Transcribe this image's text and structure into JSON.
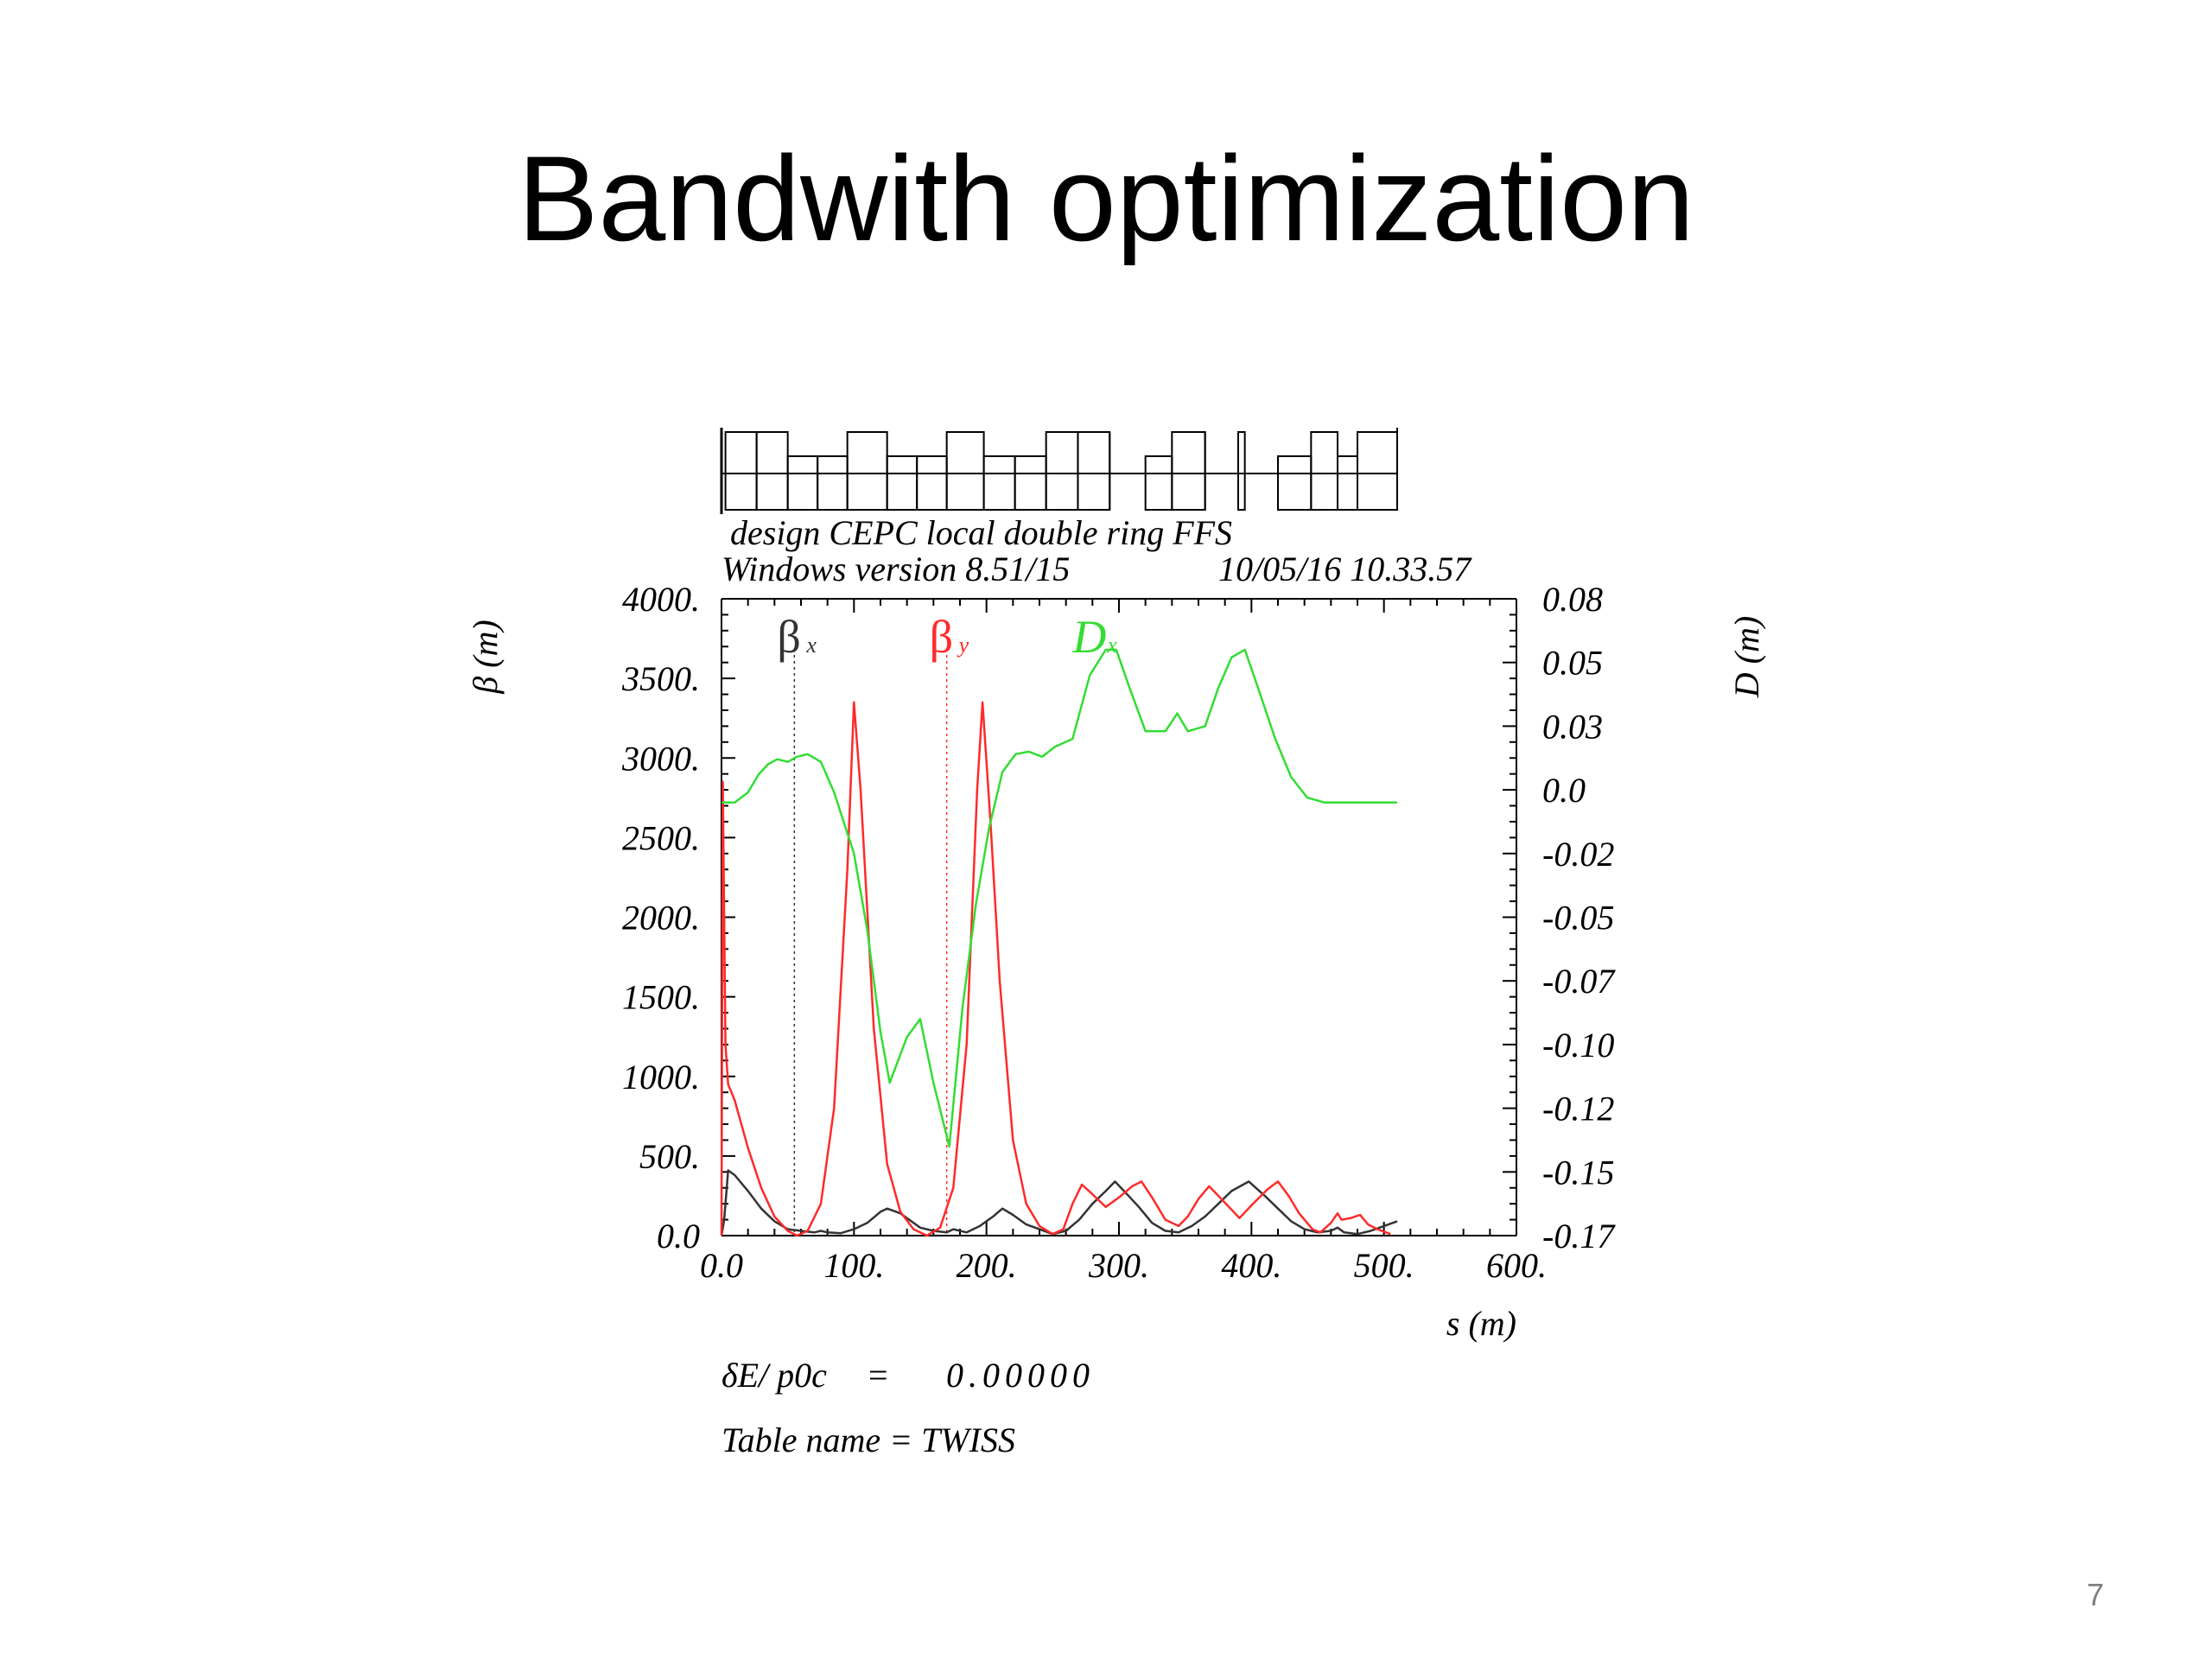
{
  "slide": {
    "title": "Bandwith optimization",
    "page_number": "7"
  },
  "plot_info": {
    "header_line1": "design CEPC local double ring FFS",
    "header_line2_left": "Windows version 8.51/15",
    "header_line2_right": "10/05/16  10.33.57",
    "footer_delta_label": "δE/ p0c",
    "footer_delta_equals": "=",
    "footer_delta_value": "0.00000",
    "footer_table": "Table name = TWISS"
  },
  "colors": {
    "beta_x": "#333333",
    "beta_y": "#ff2a2a",
    "dispersion": "#33dd33",
    "axes": "#000000"
  },
  "chart_data": {
    "type": "line",
    "xlabel": "s (m)",
    "ylabel_left": "β (m)",
    "ylabel_right": "D (m)",
    "xlim": [
      0,
      600
    ],
    "ylim_left": [
      0,
      4000
    ],
    "ylim_right": [
      -0.17,
      0.08
    ],
    "x_ticks": [
      "0.0",
      "100.",
      "200.",
      "300.",
      "400.",
      "500.",
      "600."
    ],
    "y_ticks_left": [
      "0.0",
      "500.",
      "1000.",
      "1500.",
      "2000.",
      "2500.",
      "3000.",
      "3500.",
      "4000."
    ],
    "y_ticks_right": [
      "-0.17",
      "-0.15",
      "-0.12",
      "-0.10",
      "-0.07",
      "-0.05",
      "-0.02",
      "0.0",
      "0.03",
      "0.05",
      "0.08"
    ],
    "legend": [
      {
        "main": "β",
        "sub": "x",
        "color_key": "beta_x"
      },
      {
        "main": "β",
        "sub": "y",
        "color_key": "beta_y"
      },
      {
        "main": "D",
        "sub": "x",
        "color_key": "dispersion"
      }
    ],
    "markers": [
      {
        "s": 55,
        "series": "beta_x"
      },
      {
        "s": 170,
        "series": "beta_y"
      }
    ],
    "lattice_s_end": 510,
    "lattice_elements": [
      {
        "s": 0,
        "type": "tick"
      },
      {
        "s": 3,
        "type": "box_up",
        "end": 50
      },
      {
        "s": 50,
        "type": "box_down",
        "end": 95
      },
      {
        "s": 95,
        "type": "box_up",
        "end": 125
      },
      {
        "s": 125,
        "type": "box_down",
        "end": 170
      },
      {
        "s": 170,
        "type": "box_up",
        "end": 198
      },
      {
        "s": 198,
        "type": "box_down",
        "end": 245
      },
      {
        "s": 245,
        "type": "box_up",
        "end": 293
      },
      {
        "s": 293,
        "type": "line"
      },
      {
        "s": 320,
        "type": "box_down",
        "end": 340
      },
      {
        "s": 340,
        "type": "box_up",
        "end": 365
      },
      {
        "s": 365,
        "type": "line"
      },
      {
        "s": 390,
        "type": "box_up",
        "end": 395
      },
      {
        "s": 420,
        "type": "box_down",
        "end": 445
      },
      {
        "s": 445,
        "type": "box_up",
        "end": 465
      },
      {
        "s": 465,
        "type": "box_down",
        "end": 480
      },
      {
        "s": 480,
        "type": "box_up",
        "end": 510
      }
    ],
    "series": [
      {
        "key": "beta_x",
        "name": "βx",
        "points": [
          [
            0,
            0
          ],
          [
            2,
            100
          ],
          [
            5,
            410
          ],
          [
            10,
            380
          ],
          [
            20,
            280
          ],
          [
            30,
            170
          ],
          [
            40,
            90
          ],
          [
            50,
            40
          ],
          [
            60,
            30
          ],
          [
            70,
            20
          ],
          [
            75,
            30
          ],
          [
            80,
            20
          ],
          [
            90,
            15
          ],
          [
            100,
            40
          ],
          [
            110,
            80
          ],
          [
            120,
            150
          ],
          [
            125,
            170
          ],
          [
            135,
            140
          ],
          [
            145,
            80
          ],
          [
            150,
            50
          ],
          [
            160,
            30
          ],
          [
            170,
            20
          ],
          [
            175,
            40
          ],
          [
            185,
            20
          ],
          [
            195,
            60
          ],
          [
            205,
            120
          ],
          [
            212,
            170
          ],
          [
            220,
            130
          ],
          [
            230,
            70
          ],
          [
            240,
            40
          ],
          [
            250,
            10
          ],
          [
            260,
            30
          ],
          [
            270,
            100
          ],
          [
            280,
            200
          ],
          [
            290,
            280
          ],
          [
            297,
            340
          ],
          [
            305,
            270
          ],
          [
            315,
            180
          ],
          [
            325,
            80
          ],
          [
            335,
            30
          ],
          [
            345,
            20
          ],
          [
            355,
            60
          ],
          [
            365,
            120
          ],
          [
            375,
            200
          ],
          [
            385,
            280
          ],
          [
            398,
            340
          ],
          [
            410,
            250
          ],
          [
            420,
            170
          ],
          [
            430,
            90
          ],
          [
            440,
            40
          ],
          [
            450,
            20
          ],
          [
            460,
            30
          ],
          [
            465,
            50
          ],
          [
            470,
            20
          ],
          [
            480,
            10
          ],
          [
            490,
            30
          ],
          [
            500,
            60
          ],
          [
            510,
            90
          ]
        ]
      },
      {
        "key": "beta_y",
        "name": "βy",
        "points": [
          [
            0,
            0
          ],
          [
            1,
            2850
          ],
          [
            3,
            1200
          ],
          [
            5,
            950
          ],
          [
            10,
            850
          ],
          [
            20,
            550
          ],
          [
            30,
            300
          ],
          [
            40,
            120
          ],
          [
            50,
            30
          ],
          [
            57,
            0
          ],
          [
            65,
            30
          ],
          [
            75,
            200
          ],
          [
            85,
            800
          ],
          [
            95,
            2300
          ],
          [
            100,
            3350
          ],
          [
            105,
            2800
          ],
          [
            115,
            1300
          ],
          [
            125,
            450
          ],
          [
            135,
            150
          ],
          [
            145,
            40
          ],
          [
            155,
            0
          ],
          [
            165,
            50
          ],
          [
            175,
            300
          ],
          [
            185,
            1200
          ],
          [
            193,
            2800
          ],
          [
            197,
            3350
          ],
          [
            203,
            2600
          ],
          [
            210,
            1600
          ],
          [
            220,
            600
          ],
          [
            230,
            200
          ],
          [
            240,
            60
          ],
          [
            250,
            10
          ],
          [
            258,
            40
          ],
          [
            265,
            200
          ],
          [
            272,
            320
          ],
          [
            280,
            260
          ],
          [
            290,
            180
          ],
          [
            300,
            240
          ],
          [
            310,
            310
          ],
          [
            317,
            340
          ],
          [
            325,
            240
          ],
          [
            335,
            100
          ],
          [
            345,
            60
          ],
          [
            352,
            120
          ],
          [
            360,
            230
          ],
          [
            368,
            310
          ],
          [
            375,
            250
          ],
          [
            383,
            180
          ],
          [
            391,
            110
          ],
          [
            400,
            190
          ],
          [
            412,
            290
          ],
          [
            420,
            340
          ],
          [
            428,
            250
          ],
          [
            436,
            140
          ],
          [
            446,
            40
          ],
          [
            452,
            20
          ],
          [
            460,
            80
          ],
          [
            465,
            140
          ],
          [
            468,
            100
          ],
          [
            475,
            110
          ],
          [
            482,
            130
          ],
          [
            488,
            70
          ],
          [
            495,
            40
          ],
          [
            505,
            10
          ]
        ]
      },
      {
        "key": "dispersion",
        "name": "Dx",
        "points": [
          [
            0,
            0
          ],
          [
            10,
            0.0
          ],
          [
            20,
            0.004
          ],
          [
            28,
            0.011
          ],
          [
            35,
            0.015
          ],
          [
            42,
            0.017
          ],
          [
            50,
            0.016
          ],
          [
            57,
            0.018
          ],
          [
            65,
            0.019
          ],
          [
            75,
            0.016
          ],
          [
            85,
            0.004
          ],
          [
            100,
            -0.02
          ],
          [
            110,
            -0.05
          ],
          [
            120,
            -0.09
          ],
          [
            127,
            -0.11
          ],
          [
            140,
            -0.092
          ],
          [
            150,
            -0.085
          ],
          [
            160,
            -0.11
          ],
          [
            172,
            -0.135
          ],
          [
            182,
            -0.08
          ],
          [
            192,
            -0.04
          ],
          [
            202,
            -0.01
          ],
          [
            212,
            0.012
          ],
          [
            222,
            0.019
          ],
          [
            232,
            0.02
          ],
          [
            242,
            0.018
          ],
          [
            252,
            0.022
          ],
          [
            265,
            0.025
          ],
          [
            278,
            0.05
          ],
          [
            290,
            0.06
          ],
          [
            298,
            0.06
          ],
          [
            308,
            0.045
          ],
          [
            320,
            0.028
          ],
          [
            335,
            0.028
          ],
          [
            344,
            0.035
          ],
          [
            352,
            0.028
          ],
          [
            365,
            0.03
          ],
          [
            375,
            0.045
          ],
          [
            385,
            0.057
          ],
          [
            395,
            0.06
          ],
          [
            405,
            0.045
          ],
          [
            418,
            0.025
          ],
          [
            430,
            0.01
          ],
          [
            442,
            0.002
          ],
          [
            455,
            0
          ],
          [
            470,
            0
          ],
          [
            490,
            0
          ],
          [
            510,
            0
          ]
        ]
      }
    ]
  }
}
